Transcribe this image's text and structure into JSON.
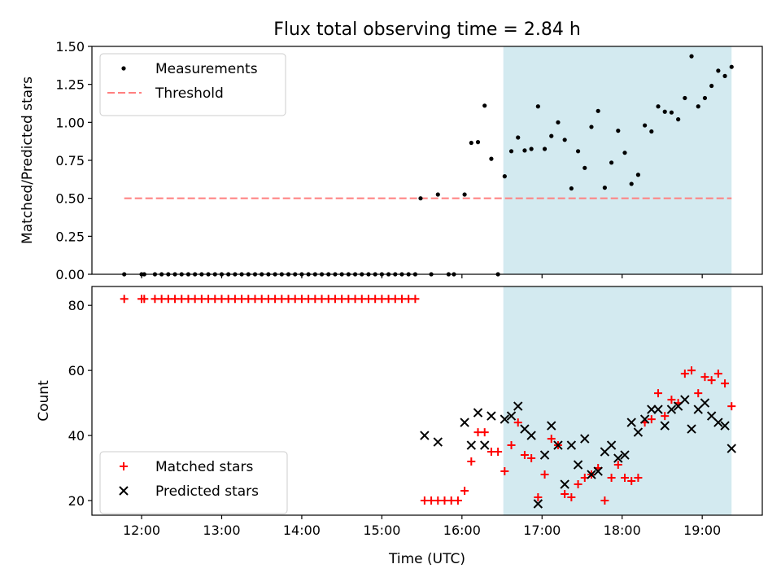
{
  "figure": {
    "title": "Flux total observing time = 2.84 h",
    "xlabel": "Time (UTC)",
    "colors": {
      "measurement": "#000000",
      "threshold": "#ff7f7f",
      "matched": "#ff0000",
      "predicted": "#000000",
      "shade": "#d3eaf0"
    }
  },
  "chart_data": [
    {
      "type": "scatter",
      "ylabel": "Matched/Predicted stars",
      "ylim": [
        0,
        1.5
      ],
      "yticks": [
        "0.00",
        "0.25",
        "0.50",
        "0.75",
        "1.00",
        "1.25",
        "1.50"
      ],
      "xlim_hours": [
        11.38,
        19.75
      ],
      "shaded_region": [
        "16:31",
        "19:22"
      ],
      "threshold": {
        "name": "Threshold",
        "value": 0.5,
        "x_range": [
          "11:47",
          "19:22"
        ]
      },
      "legend": [
        "Measurements",
        "Threshold"
      ],
      "legend_position": "upper-left",
      "series": [
        {
          "name": "Measurements",
          "points": [
            [
              "11:47",
              0
            ],
            [
              "12:00",
              0
            ],
            [
              "12:02",
              0
            ],
            [
              "12:10",
              0
            ],
            [
              "12:15",
              0
            ],
            [
              "12:20",
              0
            ],
            [
              "12:25",
              0
            ],
            [
              "12:30",
              0
            ],
            [
              "12:35",
              0
            ],
            [
              "12:40",
              0
            ],
            [
              "12:45",
              0
            ],
            [
              "12:50",
              0
            ],
            [
              "12:55",
              0
            ],
            [
              "13:00",
              0
            ],
            [
              "13:05",
              0
            ],
            [
              "13:10",
              0
            ],
            [
              "13:15",
              0
            ],
            [
              "13:20",
              0
            ],
            [
              "13:25",
              0
            ],
            [
              "13:30",
              0
            ],
            [
              "13:35",
              0
            ],
            [
              "13:40",
              0
            ],
            [
              "13:45",
              0
            ],
            [
              "13:50",
              0
            ],
            [
              "13:55",
              0
            ],
            [
              "14:00",
              0
            ],
            [
              "14:05",
              0
            ],
            [
              "14:10",
              0
            ],
            [
              "14:15",
              0
            ],
            [
              "14:20",
              0
            ],
            [
              "14:25",
              0
            ],
            [
              "14:30",
              0
            ],
            [
              "14:35",
              0
            ],
            [
              "14:40",
              0
            ],
            [
              "14:45",
              0
            ],
            [
              "14:50",
              0
            ],
            [
              "14:55",
              0
            ],
            [
              "15:00",
              0
            ],
            [
              "15:05",
              0
            ],
            [
              "15:10",
              0
            ],
            [
              "15:15",
              0
            ],
            [
              "15:20",
              0
            ],
            [
              "15:25",
              0
            ],
            [
              "15:29",
              0.5
            ],
            [
              "15:37",
              0
            ],
            [
              "15:42",
              0.525
            ],
            [
              "15:50",
              0
            ],
            [
              "15:54",
              0
            ],
            [
              "16:02",
              0.525
            ],
            [
              "16:07",
              0.865
            ],
            [
              "16:12",
              0.87
            ],
            [
              "16:17",
              1.11
            ],
            [
              "16:22",
              0.76
            ],
            [
              "16:27",
              0
            ],
            [
              "16:32",
              0.645
            ],
            [
              "16:37",
              0.81
            ],
            [
              "16:42",
              0.9
            ],
            [
              "16:47",
              0.815
            ],
            [
              "16:52",
              0.825
            ],
            [
              "16:57",
              1.105
            ],
            [
              "17:02",
              0.825
            ],
            [
              "17:07",
              0.91
            ],
            [
              "17:12",
              1.0
            ],
            [
              "17:17",
              0.885
            ],
            [
              "17:22",
              0.565
            ],
            [
              "17:27",
              0.81
            ],
            [
              "17:32",
              0.7
            ],
            [
              "17:37",
              0.97
            ],
            [
              "17:42",
              1.075
            ],
            [
              "17:47",
              0.57
            ],
            [
              "17:52",
              0.735
            ],
            [
              "17:57",
              0.945
            ],
            [
              "18:02",
              0.8
            ],
            [
              "18:07",
              0.595
            ],
            [
              "18:12",
              0.655
            ],
            [
              "18:17",
              0.98
            ],
            [
              "18:22",
              0.94
            ],
            [
              "18:27",
              1.105
            ],
            [
              "18:32",
              1.07
            ],
            [
              "18:37",
              1.065
            ],
            [
              "18:42",
              1.02
            ],
            [
              "18:47",
              1.16
            ],
            [
              "18:52",
              1.435
            ],
            [
              "18:57",
              1.105
            ],
            [
              "19:02",
              1.16
            ],
            [
              "19:07",
              1.24
            ],
            [
              "19:12",
              1.34
            ],
            [
              "19:17",
              1.305
            ],
            [
              "19:22",
              1.365
            ]
          ]
        }
      ]
    },
    {
      "type": "scatter",
      "ylabel": "Count",
      "ylim": [
        15.5,
        85.8
      ],
      "yticks": [
        "20",
        "40",
        "60",
        "80"
      ],
      "xlim_hours": [
        11.38,
        19.75
      ],
      "xticks": [
        "12:00",
        "13:00",
        "14:00",
        "15:00",
        "16:00",
        "17:00",
        "18:00",
        "19:00"
      ],
      "shaded_region": [
        "16:31",
        "19:22"
      ],
      "legend": [
        "Matched stars",
        "Predicted stars"
      ],
      "legend_position": "lower-left",
      "series": [
        {
          "name": "Matched stars",
          "marker": "+",
          "points": [
            [
              "11:47",
              82
            ],
            [
              "12:00",
              82
            ],
            [
              "12:02",
              82
            ],
            [
              "12:10",
              82
            ],
            [
              "12:15",
              82
            ],
            [
              "12:20",
              82
            ],
            [
              "12:25",
              82
            ],
            [
              "12:30",
              82
            ],
            [
              "12:35",
              82
            ],
            [
              "12:40",
              82
            ],
            [
              "12:45",
              82
            ],
            [
              "12:50",
              82
            ],
            [
              "12:55",
              82
            ],
            [
              "13:00",
              82
            ],
            [
              "13:05",
              82
            ],
            [
              "13:10",
              82
            ],
            [
              "13:15",
              82
            ],
            [
              "13:20",
              82
            ],
            [
              "13:25",
              82
            ],
            [
              "13:30",
              82
            ],
            [
              "13:35",
              82
            ],
            [
              "13:40",
              82
            ],
            [
              "13:45",
              82
            ],
            [
              "13:50",
              82
            ],
            [
              "13:55",
              82
            ],
            [
              "14:00",
              82
            ],
            [
              "14:05",
              82
            ],
            [
              "14:10",
              82
            ],
            [
              "14:15",
              82
            ],
            [
              "14:20",
              82
            ],
            [
              "14:25",
              82
            ],
            [
              "14:30",
              82
            ],
            [
              "14:35",
              82
            ],
            [
              "14:40",
              82
            ],
            [
              "14:45",
              82
            ],
            [
              "14:50",
              82
            ],
            [
              "14:55",
              82
            ],
            [
              "15:00",
              82
            ],
            [
              "15:05",
              82
            ],
            [
              "15:10",
              82
            ],
            [
              "15:15",
              82
            ],
            [
              "15:20",
              82
            ],
            [
              "15:25",
              82
            ],
            [
              "15:32",
              20
            ],
            [
              "15:37",
              20
            ],
            [
              "15:42",
              20
            ],
            [
              "15:47",
              20
            ],
            [
              "15:52",
              20
            ],
            [
              "15:57",
              20
            ],
            [
              "16:02",
              23
            ],
            [
              "16:07",
              32
            ],
            [
              "16:12",
              41
            ],
            [
              "16:17",
              41
            ],
            [
              "16:22",
              35
            ],
            [
              "16:27",
              35
            ],
            [
              "16:32",
              29
            ],
            [
              "16:37",
              37
            ],
            [
              "16:42",
              44
            ],
            [
              "16:47",
              34
            ],
            [
              "16:52",
              33
            ],
            [
              "16:57",
              21
            ],
            [
              "17:02",
              28
            ],
            [
              "17:07",
              39
            ],
            [
              "17:12",
              37
            ],
            [
              "17:17",
              22
            ],
            [
              "17:22",
              21
            ],
            [
              "17:27",
              25
            ],
            [
              "17:32",
              27
            ],
            [
              "17:37",
              28
            ],
            [
              "17:42",
              30
            ],
            [
              "17:47",
              20
            ],
            [
              "17:52",
              27
            ],
            [
              "17:57",
              31
            ],
            [
              "18:02",
              27
            ],
            [
              "18:07",
              26
            ],
            [
              "18:12",
              27
            ],
            [
              "18:17",
              44
            ],
            [
              "18:22",
              45
            ],
            [
              "18:27",
              53
            ],
            [
              "18:32",
              46
            ],
            [
              "18:37",
              51
            ],
            [
              "18:42",
              50
            ],
            [
              "18:47",
              59
            ],
            [
              "18:52",
              60
            ],
            [
              "18:57",
              53
            ],
            [
              "19:02",
              58
            ],
            [
              "19:07",
              57
            ],
            [
              "19:12",
              59
            ],
            [
              "19:17",
              56
            ],
            [
              "19:22",
              49
            ]
          ]
        },
        {
          "name": "Predicted stars",
          "marker": "x",
          "points": [
            [
              "15:32",
              40
            ],
            [
              "15:42",
              38
            ],
            [
              "16:02",
              44
            ],
            [
              "16:07",
              37
            ],
            [
              "16:12",
              47
            ],
            [
              "16:17",
              37
            ],
            [
              "16:22",
              46
            ],
            [
              "16:32",
              45
            ],
            [
              "16:37",
              46
            ],
            [
              "16:42",
              49
            ],
            [
              "16:47",
              42
            ],
            [
              "16:52",
              40
            ],
            [
              "16:57",
              19
            ],
            [
              "17:02",
              34
            ],
            [
              "17:07",
              43
            ],
            [
              "17:12",
              37
            ],
            [
              "17:17",
              25
            ],
            [
              "17:22",
              37
            ],
            [
              "17:27",
              31
            ],
            [
              "17:32",
              39
            ],
            [
              "17:37",
              28
            ],
            [
              "17:42",
              29
            ],
            [
              "17:47",
              35
            ],
            [
              "17:52",
              37
            ],
            [
              "17:57",
              33
            ],
            [
              "18:02",
              34
            ],
            [
              "18:07",
              44
            ],
            [
              "18:12",
              41
            ],
            [
              "18:17",
              45
            ],
            [
              "18:22",
              48
            ],
            [
              "18:27",
              48
            ],
            [
              "18:32",
              43
            ],
            [
              "18:37",
              48
            ],
            [
              "18:42",
              49
            ],
            [
              "18:47",
              51
            ],
            [
              "18:52",
              42
            ],
            [
              "18:57",
              48
            ],
            [
              "19:02",
              50
            ],
            [
              "19:07",
              46
            ],
            [
              "19:12",
              44
            ],
            [
              "19:17",
              43
            ],
            [
              "19:22",
              36
            ]
          ]
        }
      ]
    }
  ]
}
